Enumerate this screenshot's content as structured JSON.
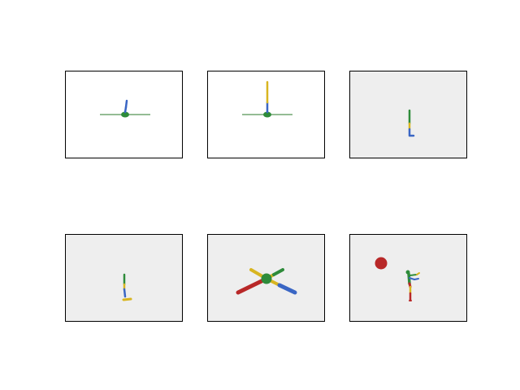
{
  "figure": {
    "panel_count": 6,
    "panels": [
      {
        "id": "p1",
        "background": "#ffffff",
        "subject": "ant-robot-standing-on-line"
      },
      {
        "id": "p2",
        "background": "#ffffff",
        "subject": "ant-robot-tall-leg-on-line"
      },
      {
        "id": "p3",
        "background": "#eeeeee",
        "subject": "hopper-upright"
      },
      {
        "id": "p4",
        "background": "#eeeeee",
        "subject": "hopper-with-foot"
      },
      {
        "id": "p5",
        "background": "#eeeeee",
        "subject": "ant-quadruped-spread"
      },
      {
        "id": "p6",
        "background": "#eeeeee",
        "subject": "humanoid-with-red-ball"
      }
    ]
  },
  "colors": {
    "green": "#2e8b3a",
    "blue": "#3a66c4",
    "yellow": "#d8b520",
    "red": "#b82828",
    "floor_line": "#2a7a2a",
    "panel_border": "#000000"
  }
}
